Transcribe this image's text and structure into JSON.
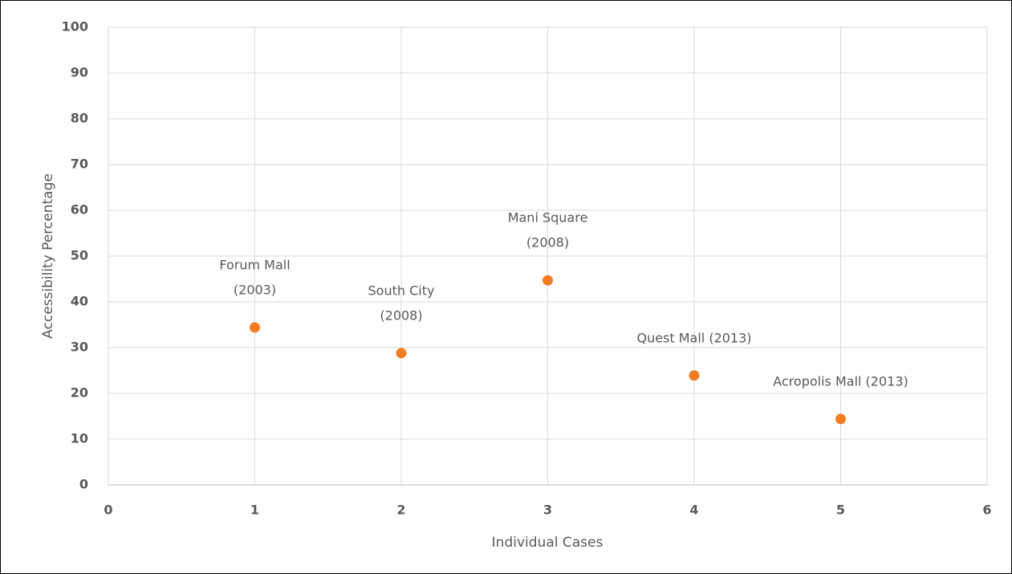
{
  "chart_data": {
    "type": "scatter",
    "x_label": "Individual Cases",
    "y_label": "Accessibility Percentage",
    "x": [
      1,
      2,
      3,
      4,
      5
    ],
    "values": [
      34.4,
      28.8,
      44.7,
      23.9,
      14.4
    ],
    "labels": [
      [
        "Forum Mall",
        "(2003)"
      ],
      [
        "South City",
        "(2008)"
      ],
      [
        "Mani Square",
        "(2008)"
      ],
      [
        "Quest Mall (2013)"
      ],
      [
        "Acropolis Mall (2013)"
      ]
    ],
    "color": "#f47c20",
    "xlim": [
      0,
      6
    ],
    "xticks": [
      0,
      1,
      2,
      3,
      4,
      5,
      6
    ],
    "ylim": [
      0,
      100
    ],
    "yticks": [
      0,
      10,
      20,
      30,
      40,
      50,
      60,
      70,
      80,
      90,
      100
    ],
    "grid": true
  }
}
